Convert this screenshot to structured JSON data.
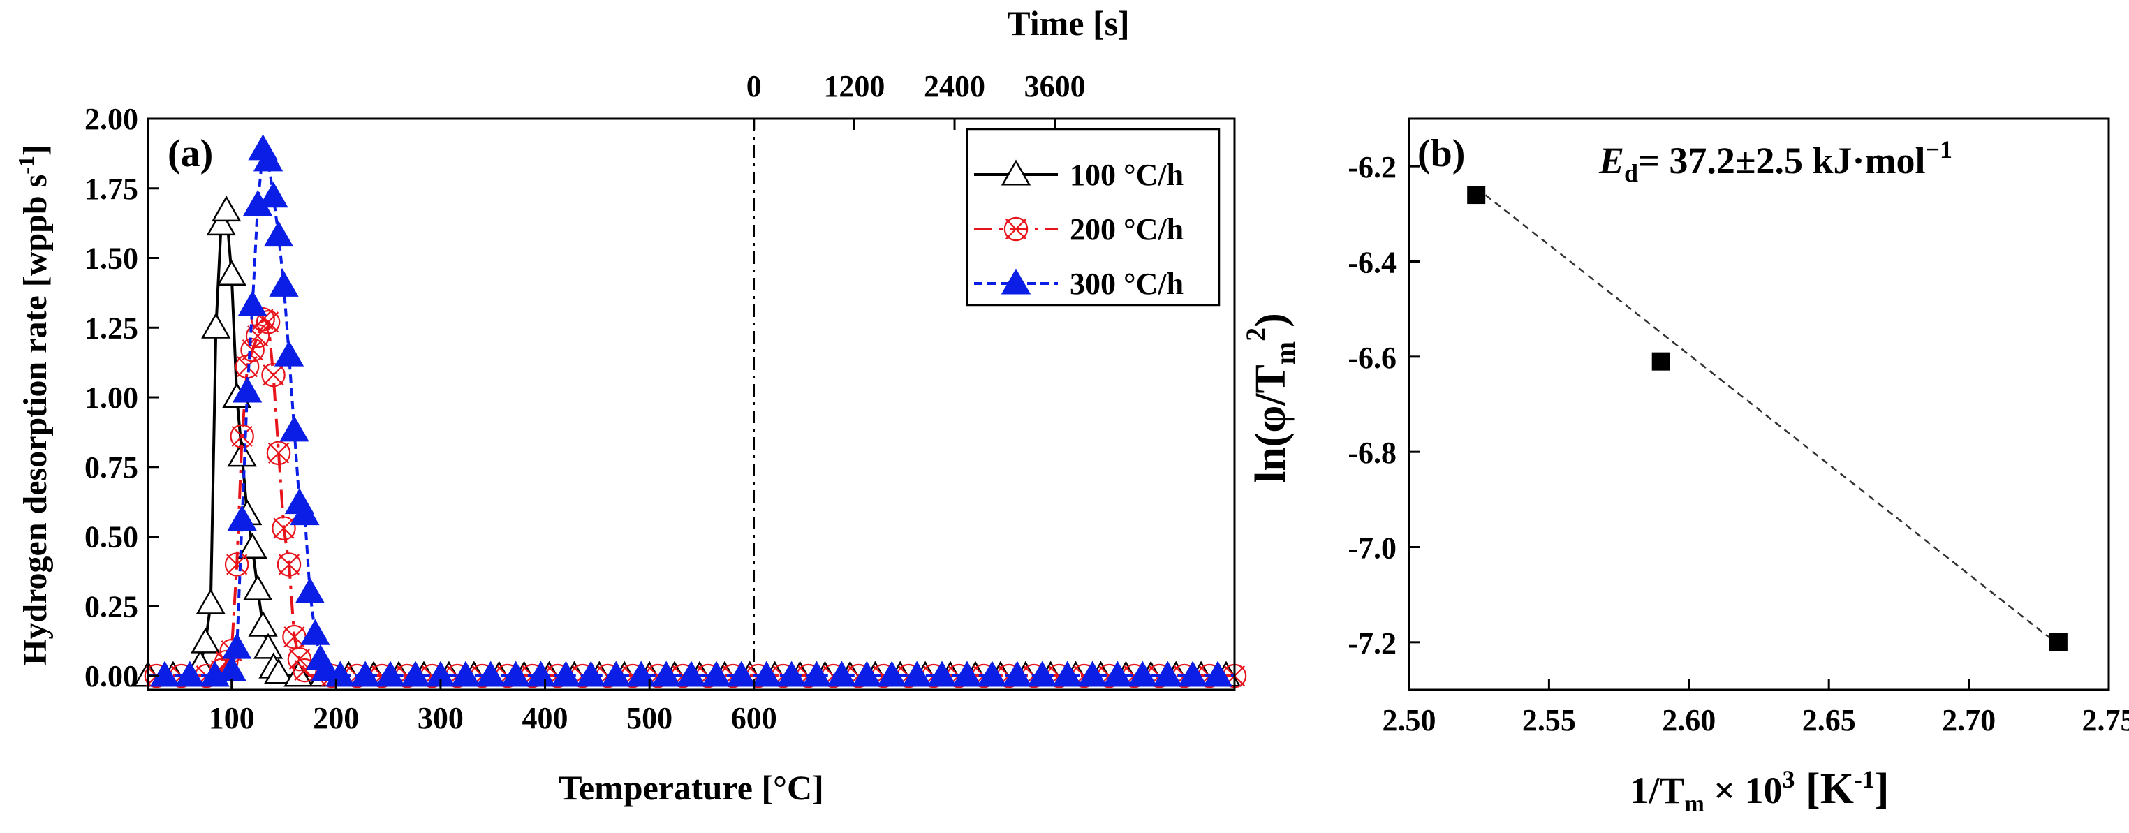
{
  "chart_data": [
    {
      "panel": "(a)",
      "type": "line",
      "xlabel": "Temperature [°C]",
      "x2label": "Time [s]",
      "ylabel": "Hydrogen desorption rate [wppb s",
      "ylabel_sup": "-1",
      "ylabel_end": "]",
      "xlim": [
        20,
        1060
      ],
      "ylim": [
        -0.05,
        2.0
      ],
      "xticks": [
        100,
        200,
        300,
        400,
        500,
        600
      ],
      "yticks": [
        0.0,
        0.25,
        0.5,
        0.75,
        1.0,
        1.25,
        1.5,
        1.75,
        2.0
      ],
      "ytick_labels": [
        "0.00",
        "0.25",
        "0.50",
        "0.75",
        "1.00",
        "1.25",
        "1.50",
        "1.75",
        "2.00"
      ],
      "top_axis": {
        "ticks": [
          0,
          1200,
          2400,
          3600
        ],
        "ticks_at_temperature": [
          600,
          696,
          792,
          888
        ]
      },
      "isothermal_marker_x": 600,
      "baseline_marker_step": 24,
      "baseline_end": 1060,
      "series": [
        {
          "name": "100 °C/h",
          "color": "#000000",
          "style": "solid",
          "marker": "open-triangle",
          "x": [
            20,
            60,
            70,
            75,
            80,
            85,
            90,
            95,
            100,
            105,
            110,
            115,
            120,
            125,
            130,
            135,
            140,
            145,
            150,
            155,
            160,
            165,
            170,
            180,
            190,
            200
          ],
          "y": [
            0.0,
            0.0,
            0.04,
            0.12,
            0.26,
            1.25,
            1.62,
            1.67,
            1.44,
            1.0,
            0.79,
            0.58,
            0.46,
            0.31,
            0.18,
            0.1,
            0.03,
            0.01,
            0.0,
            0.0,
            0.0,
            0.0,
            0.0,
            0.0,
            0.0,
            0.0
          ]
        },
        {
          "name": "200 °C/h",
          "color": "#e8141c",
          "style": "dashdot",
          "marker": "open-circle-cross",
          "x": [
            20,
            80,
            90,
            95,
            100,
            105,
            110,
            115,
            120,
            125,
            130,
            135,
            140,
            145,
            150,
            155,
            160,
            165,
            170,
            175,
            180,
            190,
            200
          ],
          "y": [
            0.0,
            0.0,
            0.02,
            0.05,
            0.09,
            0.4,
            0.86,
            1.11,
            1.17,
            1.22,
            1.28,
            1.27,
            1.08,
            0.8,
            0.53,
            0.4,
            0.14,
            0.06,
            0.02,
            0.0,
            0.0,
            0.0,
            0.0
          ]
        },
        {
          "name": "300 °C/h",
          "color": "#0a1ee6",
          "style": "dotted",
          "marker": "filled-triangle",
          "x": [
            20,
            95,
            100,
            105,
            110,
            115,
            120,
            125,
            130,
            135,
            140,
            145,
            150,
            155,
            160,
            165,
            170,
            175,
            180,
            185,
            190,
            195,
            200
          ],
          "y": [
            0.0,
            0.0,
            0.02,
            0.1,
            0.56,
            1.02,
            1.33,
            1.69,
            1.89,
            1.85,
            1.72,
            1.58,
            1.4,
            1.15,
            0.88,
            0.62,
            0.58,
            0.3,
            0.15,
            0.06,
            0.02,
            0.0,
            0.0
          ]
        }
      ]
    },
    {
      "panel": "(b)",
      "type": "scatter",
      "xlabel_pre": "1/T",
      "xlabel_sub": "m",
      "xlabel_mid": " × 10",
      "xlabel_sup": "3",
      "xlabel_unit_pre": " [K",
      "xlabel_unit_sup": "-1",
      "xlabel_unit_end": "]",
      "ylabel_pre": "ln(φ/T",
      "ylabel_sub": "m",
      "ylabel_sup": "2",
      "ylabel_end": ")",
      "xlim": [
        2.5,
        2.75
      ],
      "ylim": [
        -7.3,
        -6.1
      ],
      "xticks": [
        2.5,
        2.55,
        2.6,
        2.65,
        2.7,
        2.75
      ],
      "xtick_labels": [
        "2.50",
        "2.55",
        "2.60",
        "2.65",
        "2.70",
        "2.75"
      ],
      "yticks": [
        -7.2,
        -7.0,
        -6.8,
        -6.6,
        -6.4,
        -6.2
      ],
      "ytick_labels": [
        "-7.2",
        "-7.0",
        "-6.8",
        "-6.6",
        "-6.4",
        "-6.2"
      ],
      "points": {
        "x": [
          2.524,
          2.59,
          2.732
        ],
        "y": [
          -6.26,
          -6.61,
          -7.2
        ]
      },
      "fit": {
        "x": [
          2.524,
          2.732
        ],
        "y": [
          -6.245,
          -7.205
        ]
      },
      "annotation": {
        "sym": "E",
        "sub": "d",
        "text": "= 37.2±2.5 kJ·mol",
        "sup": "−1"
      }
    }
  ],
  "colors": {
    "axis": "#000000",
    "fit_line": "#333333",
    "point": "#000000"
  }
}
